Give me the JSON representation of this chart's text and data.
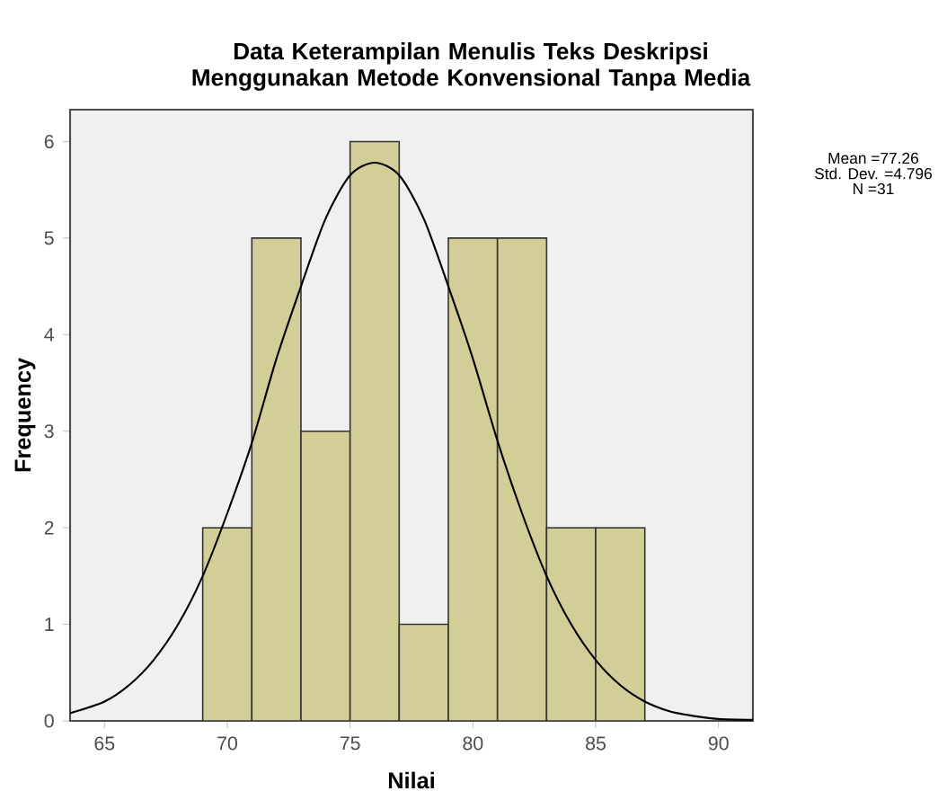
{
  "chart_data": {
    "type": "histogram",
    "title": "Data Keterampilan Menulis Teks Deskripsi Menggunakan Metode Konvensional Tanpa Media",
    "xlabel": "Nilai",
    "ylabel": "Frequency",
    "bins": [
      69,
      71,
      73,
      75,
      77,
      79,
      81,
      83,
      85,
      87
    ],
    "values": [
      2,
      5,
      3,
      6,
      1,
      5,
      5,
      2,
      2
    ],
    "color": "#d3ce97",
    "series": [
      {
        "type": "line",
        "color": "#000000",
        "x": [
          63.6,
          65,
          66,
          67,
          68,
          69,
          70,
          71,
          72,
          73,
          74,
          75,
          76,
          77,
          78,
          79,
          80,
          81,
          82,
          83,
          84,
          85,
          86,
          87,
          88,
          89,
          90,
          91.4
        ],
        "values": [
          0.08,
          0.2,
          0.37,
          0.63,
          1.0,
          1.5,
          2.15,
          2.88,
          3.75,
          4.5,
          5.2,
          5.65,
          5.78,
          5.65,
          5.2,
          4.5,
          3.75,
          2.9,
          2.15,
          1.5,
          1.0,
          0.63,
          0.37,
          0.2,
          0.1,
          0.05,
          0.02,
          0.01
        ]
      }
    ],
    "xlim": [
      63.6,
      91.4
    ],
    "ylim": [
      0,
      6.33
    ],
    "xticks": [
      65,
      70,
      75,
      80,
      85,
      90
    ],
    "yticks": [
      0,
      1,
      2,
      3,
      4,
      5,
      6
    ],
    "grid": false,
    "annotations": [
      "Mean =77.26",
      "Std. Dev. =4.796",
      "N =31"
    ]
  }
}
